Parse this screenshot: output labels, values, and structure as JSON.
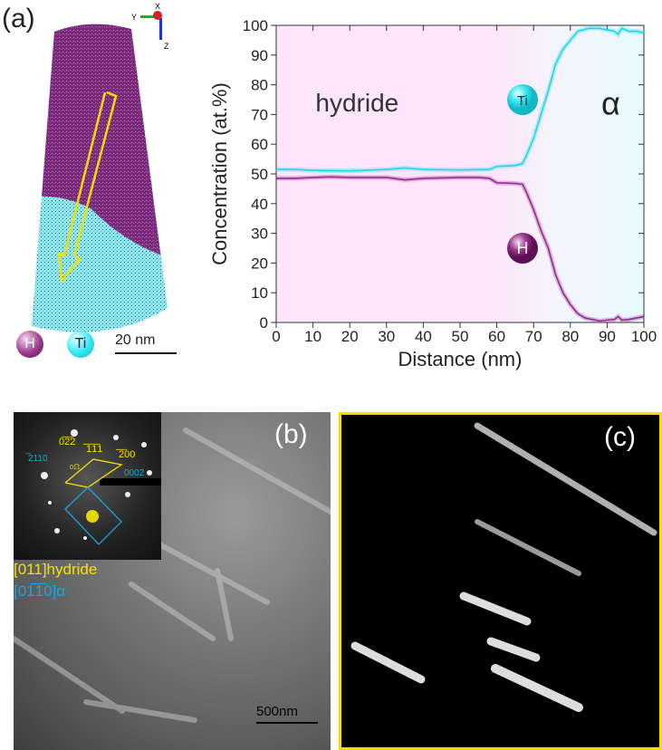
{
  "panel_a": {
    "label": "(a)",
    "legend_H": "H",
    "legend_Ti": "Ti",
    "scale_bar": "20 nm",
    "axes": {
      "x": "X",
      "y": "Y",
      "z": "Z"
    }
  },
  "panel_b": {
    "label": "(b)",
    "scale_bar": "500nm",
    "zone_hydride": "[011]hydride",
    "zone_alpha": "[01̅1̅0]α",
    "spots_yellow": [
      "0̅2̅2",
      "̅1̅1̅1",
      "̅2̅00",
      "01̅1"
    ],
    "spots_blue": [
      "̅2110",
      "0002"
    ]
  },
  "panel_c": {
    "label": "(c)"
  },
  "colors": {
    "H": "#9b2a8e",
    "Ti": "#22d8e8",
    "hydride_bg": "#fde6fb",
    "alpha_bg": "#e6fbfd",
    "frame": "#f5dc00"
  },
  "chart_data": {
    "type": "line",
    "xlabel": "Distance (nm)",
    "ylabel": "Concentration (at.%)",
    "xlim": [
      0,
      100
    ],
    "ylim": [
      0,
      100
    ],
    "xticks": [
      0,
      10,
      20,
      30,
      40,
      50,
      60,
      70,
      80,
      90,
      100
    ],
    "yticks": [
      0,
      10,
      20,
      30,
      40,
      50,
      60,
      70,
      80,
      90,
      100
    ],
    "annotations": [
      "hydride",
      "α"
    ],
    "series": [
      {
        "name": "Ti",
        "x": [
          0,
          5,
          10,
          20,
          30,
          35,
          40,
          50,
          58,
          60,
          65,
          67,
          68,
          70,
          72,
          74,
          76,
          78,
          80,
          82,
          85,
          88,
          90,
          92,
          93,
          94,
          96,
          98,
          100
        ],
        "y": [
          51.5,
          51.5,
          51.2,
          51,
          51.5,
          52,
          51.5,
          51.3,
          51.5,
          52.5,
          52.8,
          53.5,
          56,
          62,
          70,
          78,
          87,
          92,
          95,
          98,
          99,
          99,
          98.5,
          98,
          97,
          99,
          98,
          98,
          97.5
        ]
      },
      {
        "name": "H",
        "x": [
          0,
          5,
          10,
          15,
          20,
          30,
          35,
          40,
          50,
          55,
          58,
          60,
          65,
          67,
          68,
          70,
          72,
          74,
          76,
          78,
          80,
          82,
          84,
          86,
          88,
          90,
          92,
          93,
          94,
          96,
          98,
          100
        ],
        "y": [
          48.5,
          48.5,
          48.8,
          49,
          48.8,
          48.8,
          48,
          48.5,
          48.8,
          48.8,
          48.5,
          47,
          46.8,
          46.5,
          44,
          38,
          31,
          25,
          16,
          10,
          6,
          3,
          1.5,
          1,
          0.5,
          0.8,
          1,
          2,
          0.8,
          1,
          1.5,
          2
        ]
      }
    ]
  }
}
